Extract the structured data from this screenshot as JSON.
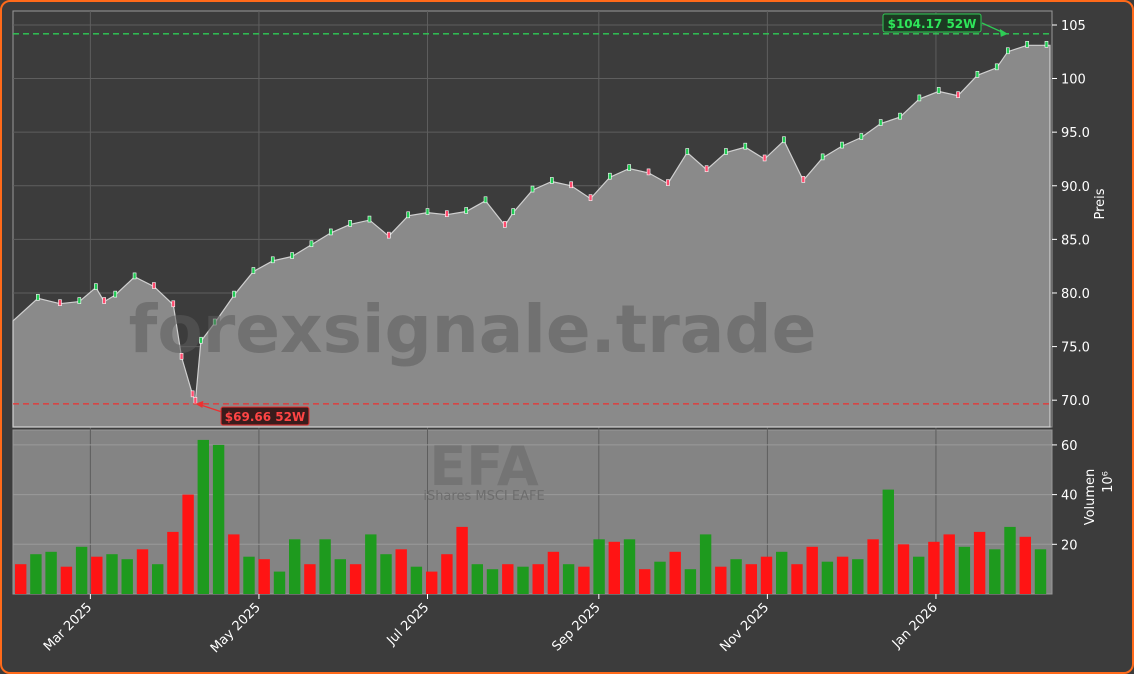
{
  "chart_data": {
    "type": "candlestick",
    "watermark": "forexsignale.trade",
    "symbol": "EFA",
    "symbol_name": "iShares MSCI EAFE",
    "price_axis": {
      "label": "Preis",
      "ticks": [
        "70.0",
        "75.0",
        "80.0",
        "85.0",
        "90.0",
        "95.0",
        "100",
        "105"
      ],
      "range": [
        67.5,
        106.3
      ]
    },
    "volume_axis": {
      "label": "Volumen",
      "unit": "10⁶",
      "ticks": [
        "20",
        "40",
        "60"
      ],
      "range": [
        0,
        66
      ]
    },
    "x_ticks": [
      "Mar 2025",
      "May 2025",
      "Jul 2025",
      "Sep 2025",
      "Nov 2025",
      "Jan 2026"
    ],
    "x_tick_dates": [
      "2025-03-01",
      "2025-05-01",
      "2025-07-01",
      "2025-09-01",
      "2025-11-01",
      "2026-01-01"
    ],
    "date_range": [
      "2025-02-01",
      "2026-02-12"
    ],
    "high_52w": {
      "label": "$104.17 52W",
      "value": 104.17,
      "date": "2026-01-27"
    },
    "low_52w": {
      "label": "$69.66 52W",
      "value": 69.66,
      "date": "2025-04-08"
    },
    "last_close": 103.1,
    "price_series": {
      "dates": [
        "2025-02-01",
        "2025-02-10",
        "2025-02-18",
        "2025-02-25",
        "2025-03-03",
        "2025-03-06",
        "2025-03-10",
        "2025-03-17",
        "2025-03-24",
        "2025-03-31",
        "2025-04-03",
        "2025-04-07",
        "2025-04-08",
        "2025-04-10",
        "2025-04-15",
        "2025-04-22",
        "2025-04-29",
        "2025-05-06",
        "2025-05-13",
        "2025-05-20",
        "2025-05-27",
        "2025-06-03",
        "2025-06-10",
        "2025-06-17",
        "2025-06-24",
        "2025-07-01",
        "2025-07-08",
        "2025-07-15",
        "2025-07-22",
        "2025-07-29",
        "2025-08-01",
        "2025-08-08",
        "2025-08-15",
        "2025-08-22",
        "2025-08-29",
        "2025-09-05",
        "2025-09-12",
        "2025-09-19",
        "2025-09-26",
        "2025-10-03",
        "2025-10-10",
        "2025-10-17",
        "2025-10-24",
        "2025-10-31",
        "2025-11-07",
        "2025-11-14",
        "2025-11-21",
        "2025-11-28",
        "2025-12-05",
        "2025-12-12",
        "2025-12-19",
        "2025-12-26",
        "2026-01-02",
        "2026-01-09",
        "2026-01-16",
        "2026-01-23",
        "2026-01-27",
        "2026-02-03",
        "2026-02-10"
      ],
      "close": [
        77.4,
        79.5,
        79.0,
        79.2,
        80.5,
        79.2,
        79.8,
        81.5,
        80.6,
        78.9,
        74.0,
        70.5,
        69.9,
        75.5,
        77.2,
        79.8,
        82.0,
        83.0,
        83.4,
        84.5,
        85.6,
        86.4,
        86.8,
        85.3,
        87.2,
        87.5,
        87.3,
        87.6,
        88.6,
        86.3,
        87.5,
        89.6,
        90.4,
        90.0,
        88.8,
        90.8,
        91.6,
        91.2,
        90.2,
        93.1,
        91.5,
        93.1,
        93.6,
        92.5,
        94.2,
        90.5,
        92.6,
        93.7,
        94.5,
        95.8,
        96.4,
        98.1,
        98.8,
        98.4,
        100.3,
        101.0,
        102.5,
        103.1,
        103.1
      ]
    },
    "volume_series": {
      "values": [
        12,
        16,
        17,
        11,
        19,
        15,
        16,
        14,
        18,
        12,
        25,
        40,
        62,
        60,
        24,
        15,
        14,
        9,
        22,
        12,
        22,
        14,
        12,
        24,
        16,
        18,
        11,
        9,
        16,
        27,
        12,
        10,
        12,
        11,
        12,
        17,
        12,
        11,
        22,
        21,
        22,
        10,
        13,
        17,
        10,
        24,
        11,
        14,
        12,
        15,
        17,
        12,
        19,
        13,
        15,
        14,
        22,
        42,
        20,
        15,
        21,
        24,
        19,
        25,
        18,
        27,
        23,
        18
      ],
      "up": [
        false,
        true,
        true,
        false,
        true,
        false,
        true,
        true,
        false,
        true,
        false,
        false,
        true,
        true,
        false,
        true,
        false,
        true,
        true,
        false,
        true,
        true,
        false,
        true,
        true,
        false,
        true,
        false,
        false,
        false,
        true,
        true,
        false,
        true,
        false,
        false,
        true,
        false,
        true,
        false,
        true,
        false,
        true,
        false,
        true,
        true,
        false,
        true,
        false,
        false,
        true,
        false,
        false,
        true,
        false,
        true,
        false,
        true,
        false,
        true,
        false,
        false,
        true,
        false,
        true,
        true,
        false,
        true
      ]
    }
  }
}
